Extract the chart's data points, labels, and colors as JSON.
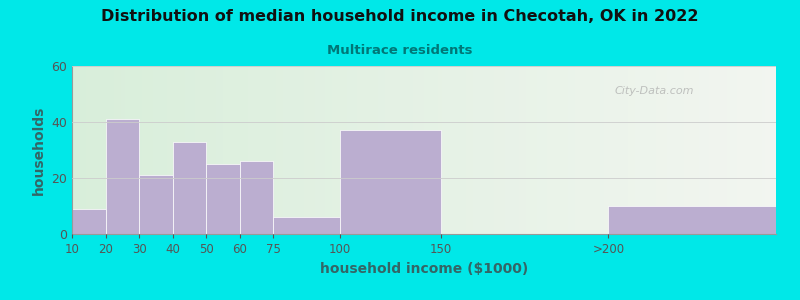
{
  "title": "Distribution of median household income in Checotah, OK in 2022",
  "subtitle": "Multirace residents",
  "xlabel": "household income ($1000)",
  "ylabel": "households",
  "bar_labels": [
    "10",
    "20",
    "30",
    "40",
    "50",
    "60",
    "75",
    "100",
    "150",
    ">200"
  ],
  "bar_left_edges": [
    0,
    1,
    2,
    3,
    4,
    5,
    6,
    8,
    11,
    16
  ],
  "bar_widths": [
    1,
    1,
    1,
    1,
    1,
    1,
    2,
    3,
    5,
    5
  ],
  "bar_values": [
    9,
    41,
    21,
    33,
    25,
    26,
    6,
    37,
    0,
    10
  ],
  "bar_color": "#bbaed0",
  "background_outer": "#00e8e8",
  "background_inner_left": "#d8eeda",
  "background_inner_right": "#f2f5f0",
  "title_color": "#111111",
  "subtitle_color": "#007777",
  "axis_label_color": "#336666",
  "tick_color": "#555555",
  "ylim": [
    0,
    60
  ],
  "yticks": [
    0,
    20,
    40,
    60
  ],
  "watermark": "City-Data.com"
}
